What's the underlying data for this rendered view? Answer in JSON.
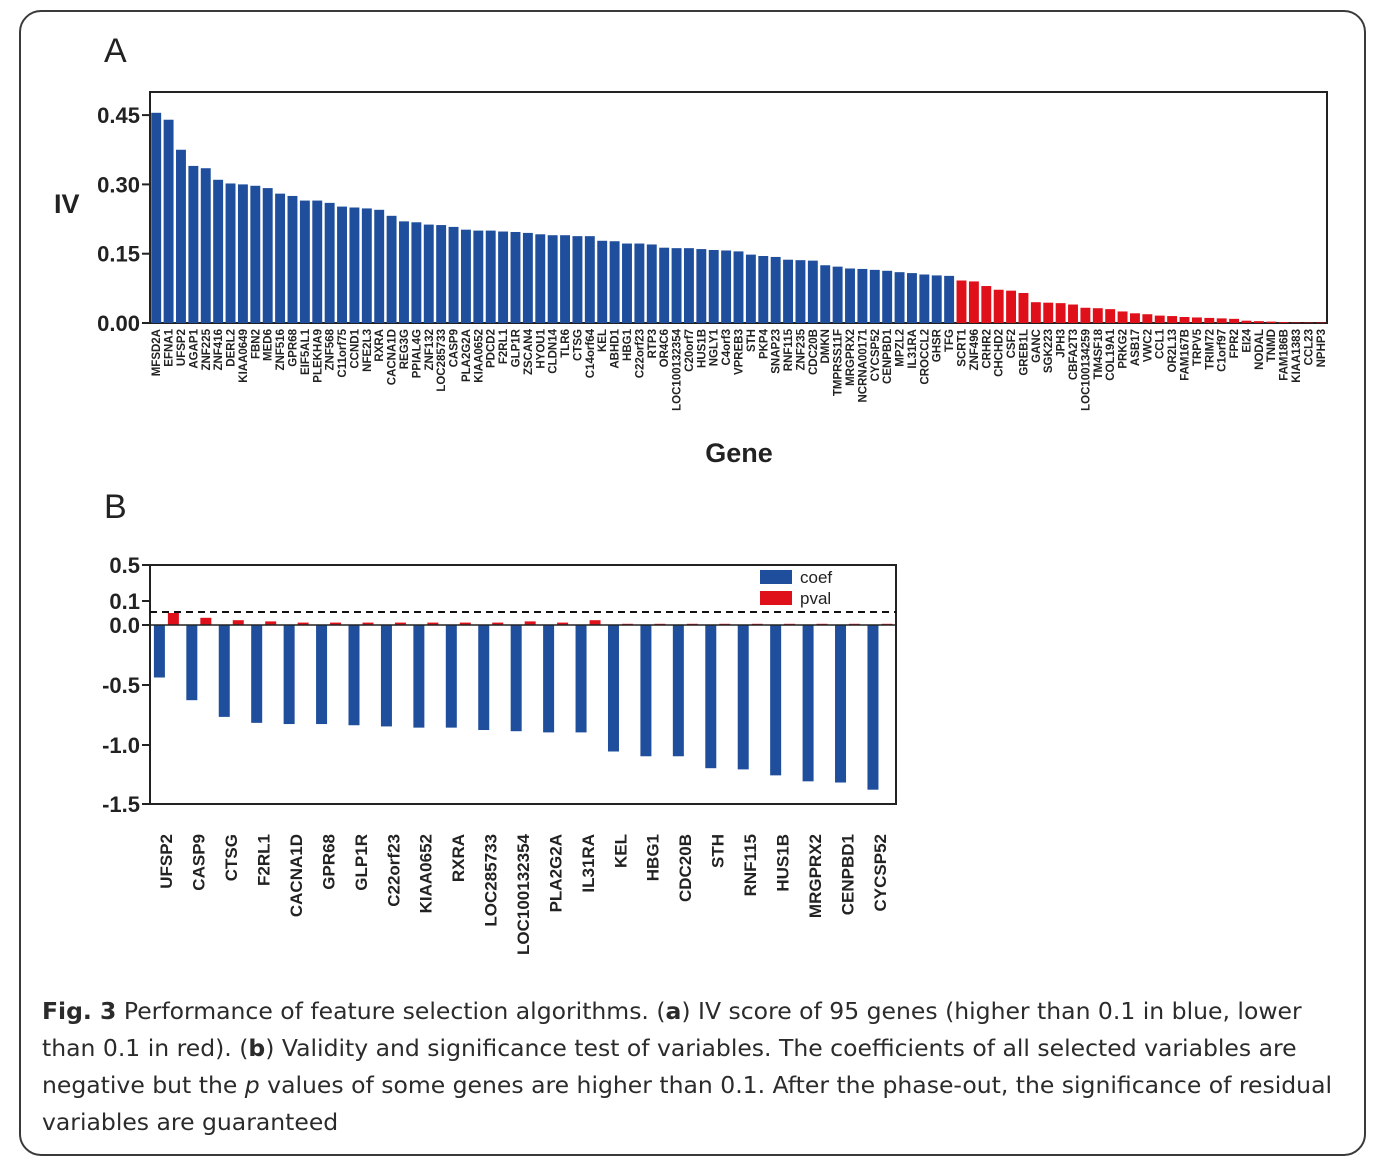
{
  "panel_a_letter": "A",
  "panel_b_letter": "B",
  "caption": {
    "fig_label": "Fig. 3",
    "s1": " Performance of feature selection algorithms. (",
    "a": "a",
    "s2": ") IV score of 95 genes (higher than 0.1 in blue, lower than 0.1 in red). (",
    "b": "b",
    "s3": ") Validity and significance test of variables. The coefficients of all selected variables are negative but the ",
    "p": "p",
    "s4": " values of some genes are higher than 0.1. After the phase-out, the significance of residual variables are guaranteed"
  },
  "colors": {
    "blue": "#1f4e9c",
    "red": "#e0101b"
  },
  "chart_data": [
    {
      "type": "bar",
      "ylabel": "IV",
      "xlabel": "Gene",
      "ylim": [
        0,
        0.5
      ],
      "yticks": [
        "0.00",
        "0.15",
        "0.30",
        "0.45"
      ],
      "threshold": 0.1,
      "categories": [
        "MFSD2A",
        "EFNA1",
        "UFSP2",
        "AGAP1",
        "ZNF225",
        "ZNF416",
        "DERL2",
        "KIAA0649",
        "FBN2",
        "MED6",
        "ZNF516",
        "GPR68",
        "EIF5AL1",
        "PLEKHA9",
        "ZNF568",
        "C11orf75",
        "CCND1",
        "NFE2L3",
        "RXRA",
        "CACNA1D",
        "REG3G",
        "PPIAL4G",
        "ZNF132",
        "LOC285733",
        "CASP9",
        "PLA2G2A",
        "KIAA0652",
        "PDCD2",
        "F2RL1",
        "GLP1R",
        "ZSCAN4",
        "HYOU1",
        "CLDN14",
        "TLR6",
        "CTSG",
        "C14orf64",
        "KEL",
        "ABHD1",
        "HBG1",
        "C22orf23",
        "RTP3",
        "OR4C6",
        "LOC100132354",
        "C20orf7",
        "HUS1B",
        "NGLY1",
        "C4orf3",
        "VPREB3",
        "STH",
        "PKP4",
        "SNAP23",
        "RNF115",
        "ZNF235",
        "CDC20B",
        "DMKN",
        "TMPRSS11F",
        "MRGPRX2",
        "NCRNA00171",
        "CYCSP52",
        "CENPBD1",
        "MPZL2",
        "IL31RA",
        "CROCCL2",
        "GHSR",
        "TFG",
        "SCRT1",
        "ZNF496",
        "CRHR2",
        "CHCHD2",
        "CSF2",
        "GREB1L",
        "GANC",
        "SGK223",
        "JPH3",
        "CBFA2T3",
        "LOC100134259",
        "TM4SF18",
        "COL19A1",
        "PRKG2",
        "ASB17",
        "VWC2",
        "CCL1",
        "OR2L13",
        "FAM167B",
        "TRPV5",
        "TRIM72",
        "C1orf97",
        "FPR2",
        "EI24",
        "NODAL",
        "TNMD",
        "FAM186B",
        "KIAA1383",
        "CCL23",
        "NPHP3"
      ],
      "values": [
        0.455,
        0.44,
        0.375,
        0.34,
        0.335,
        0.31,
        0.302,
        0.3,
        0.297,
        0.292,
        0.28,
        0.275,
        0.265,
        0.265,
        0.26,
        0.252,
        0.25,
        0.248,
        0.245,
        0.232,
        0.22,
        0.218,
        0.213,
        0.212,
        0.208,
        0.202,
        0.2,
        0.2,
        0.198,
        0.197,
        0.195,
        0.192,
        0.19,
        0.19,
        0.188,
        0.188,
        0.178,
        0.177,
        0.172,
        0.172,
        0.17,
        0.163,
        0.162,
        0.162,
        0.16,
        0.158,
        0.157,
        0.155,
        0.148,
        0.145,
        0.143,
        0.137,
        0.136,
        0.135,
        0.125,
        0.122,
        0.118,
        0.117,
        0.115,
        0.113,
        0.11,
        0.108,
        0.105,
        0.103,
        0.102,
        0.092,
        0.09,
        0.08,
        0.072,
        0.07,
        0.065,
        0.045,
        0.044,
        0.043,
        0.04,
        0.033,
        0.032,
        0.03,
        0.025,
        0.021,
        0.019,
        0.016,
        0.015,
        0.013,
        0.012,
        0.011,
        0.01,
        0.009,
        0.005,
        0.004,
        0.003,
        0.002,
        0.001,
        0.001,
        0.001
      ]
    },
    {
      "type": "bar",
      "ylim": [
        -1.5,
        0.5
      ],
      "yticks": [
        "0.5",
        "0.1",
        "0.0",
        "-0.5",
        "-1.0",
        "-1.5"
      ],
      "dashed_line": 0.1,
      "legend_position": "top",
      "categories": [
        "UFSP2",
        "CASP9",
        "CTSG",
        "F2RL1",
        "CACNA1D",
        "GPR68",
        "GLP1R",
        "C22orf23",
        "KIAA0652",
        "RXRA",
        "LOC285733",
        "LOC100132354",
        "PLA2G2A",
        "IL31RA",
        "KEL",
        "HBG1",
        "CDC20B",
        "STH",
        "RNF115",
        "HUS1B",
        "MRGPRX2",
        "CENPBD1",
        "CYCSP52"
      ],
      "series": [
        {
          "name": "coef",
          "values": [
            -0.44,
            -0.63,
            -0.77,
            -0.82,
            -0.83,
            -0.83,
            -0.84,
            -0.85,
            -0.86,
            -0.86,
            -0.88,
            -0.89,
            -0.9,
            -0.9,
            -1.06,
            -1.1,
            -1.1,
            -1.2,
            -1.21,
            -1.26,
            -1.31,
            -1.32,
            -1.38
          ]
        },
        {
          "name": "pval",
          "values": [
            0.1,
            0.06,
            0.04,
            0.03,
            0.02,
            0.02,
            0.02,
            0.02,
            0.02,
            0.02,
            0.02,
            0.03,
            0.02,
            0.04,
            0.01,
            0.01,
            0.01,
            0.01,
            0.01,
            0.01,
            0.01,
            0.01,
            0.01
          ]
        }
      ]
    }
  ]
}
